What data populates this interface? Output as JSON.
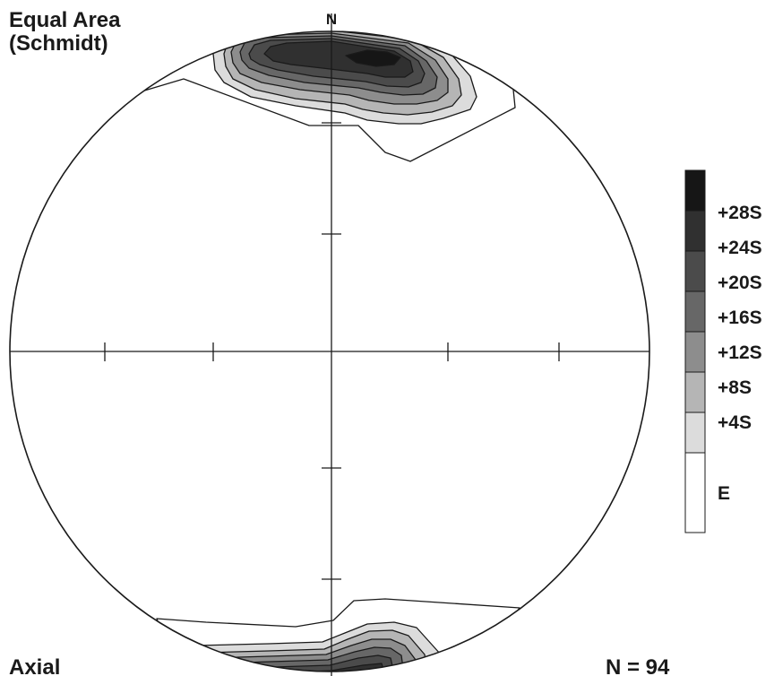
{
  "header": {
    "projection_line1": "Equal Area",
    "projection_line2": "(Schmidt)",
    "north_label": "N"
  },
  "footer": {
    "fabric_type": "Axial",
    "sample_count": "N = 94"
  },
  "legend": {
    "items": [
      {
        "label": "+28S",
        "color": "#161616"
      },
      {
        "label": "+24S",
        "color": "#303030"
      },
      {
        "label": "+20S",
        "color": "#4b4b4b"
      },
      {
        "label": "+16S",
        "color": "#676767"
      },
      {
        "label": "+12S",
        "color": "#8d8d8d"
      },
      {
        "label": "+8S",
        "color": "#b5b5b5"
      },
      {
        "label": "+4S",
        "color": "#dcdcdc"
      },
      {
        "label": "E",
        "color": "#ffffff"
      }
    ]
  },
  "colors": {
    "line": "#1a1a1a",
    "background": "#ffffff"
  }
}
